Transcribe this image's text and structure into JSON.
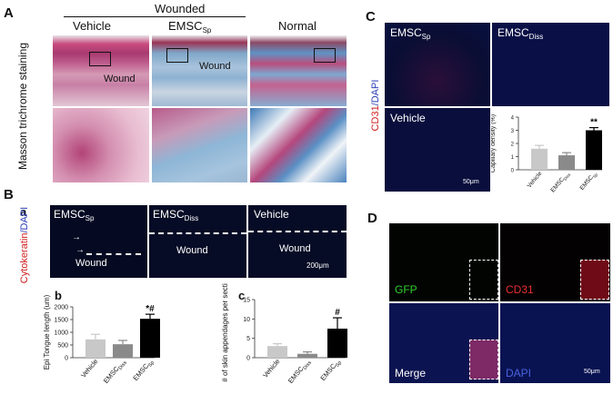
{
  "panelA": {
    "letter": "A",
    "wounded_label": "Wounded",
    "col_vehicle": "Vehicle",
    "col_emsc_main": "EMSC",
    "col_emsc_sub": "Sp",
    "col_normal": "Normal",
    "side_label": "Masson trichrome staining",
    "wound_label": "Wound"
  },
  "panelB": {
    "letter": "B",
    "sub_a": "a",
    "sub_b": "b",
    "sub_c": "c",
    "side_label_red": "Cytokeratin",
    "side_label_blue": "/DAPI",
    "img1_main": "EMSC",
    "img1_sub": "Sp",
    "img2_main": "EMSC",
    "img2_sub": "Diss",
    "img3_label": "Vehicle",
    "wound_label": "Wound",
    "scale_bar": "200μm"
  },
  "panelC": {
    "letter": "C",
    "img1_main": "EMSC",
    "img1_sub": "Sp",
    "img2_main": "EMSC",
    "img2_sub": "Diss",
    "img3_label": "Vehicle",
    "side_label_red": "CD31",
    "side_label_blue": "/DAPI",
    "scale_bar": "50μm"
  },
  "panelD": {
    "letter": "D",
    "gfp": "GFP",
    "cd31": "CD31",
    "merge": "Merge",
    "dapi": "DAPI",
    "scale_bar": "50μm"
  },
  "chart_data": [
    {
      "type": "bar",
      "panel": "B-b",
      "categories": [
        "Vehicle",
        "EMSC",
        "EMSC"
      ],
      "category_subs": [
        "",
        "Diss",
        "Sp"
      ],
      "values": [
        720,
        530,
        1530
      ],
      "errors": [
        200,
        150,
        180
      ],
      "colors": [
        "#c8c8c8",
        "#8a8a8a",
        "#000000"
      ],
      "ylabel": "Epi Tongue length (um)",
      "ylim": [
        0,
        2000
      ],
      "yticks": [
        0,
        500,
        1000,
        1500,
        2000
      ],
      "annotations": [
        "",
        "",
        "*#"
      ]
    },
    {
      "type": "bar",
      "panel": "B-c",
      "categories": [
        "Vehicle",
        "EMSC",
        "EMSC"
      ],
      "category_subs": [
        "",
        "Diss",
        "Sp"
      ],
      "values": [
        3,
        1,
        7.5
      ],
      "errors": [
        0.6,
        0.5,
        2.8
      ],
      "colors": [
        "#c8c8c8",
        "#8a8a8a",
        "#000000"
      ],
      "ylabel": "# of skin appendages per section",
      "ylim": [
        0,
        15
      ],
      "yticks": [
        0,
        5,
        10,
        15
      ],
      "annotations": [
        "",
        "",
        "#"
      ]
    },
    {
      "type": "bar",
      "panel": "C",
      "categories": [
        "Vehicle",
        "EMSC",
        "EMSC"
      ],
      "category_subs": [
        "",
        "Diss",
        "Sp"
      ],
      "values": [
        1.6,
        1.1,
        3.0
      ],
      "errors": [
        0.25,
        0.2,
        0.2
      ],
      "colors": [
        "#c8c8c8",
        "#8a8a8a",
        "#000000"
      ],
      "ylabel": "Capillary density (%)",
      "ylim": [
        0,
        4
      ],
      "yticks": [
        0,
        1,
        2,
        3,
        4
      ],
      "annotations": [
        "",
        "",
        "**"
      ]
    }
  ]
}
